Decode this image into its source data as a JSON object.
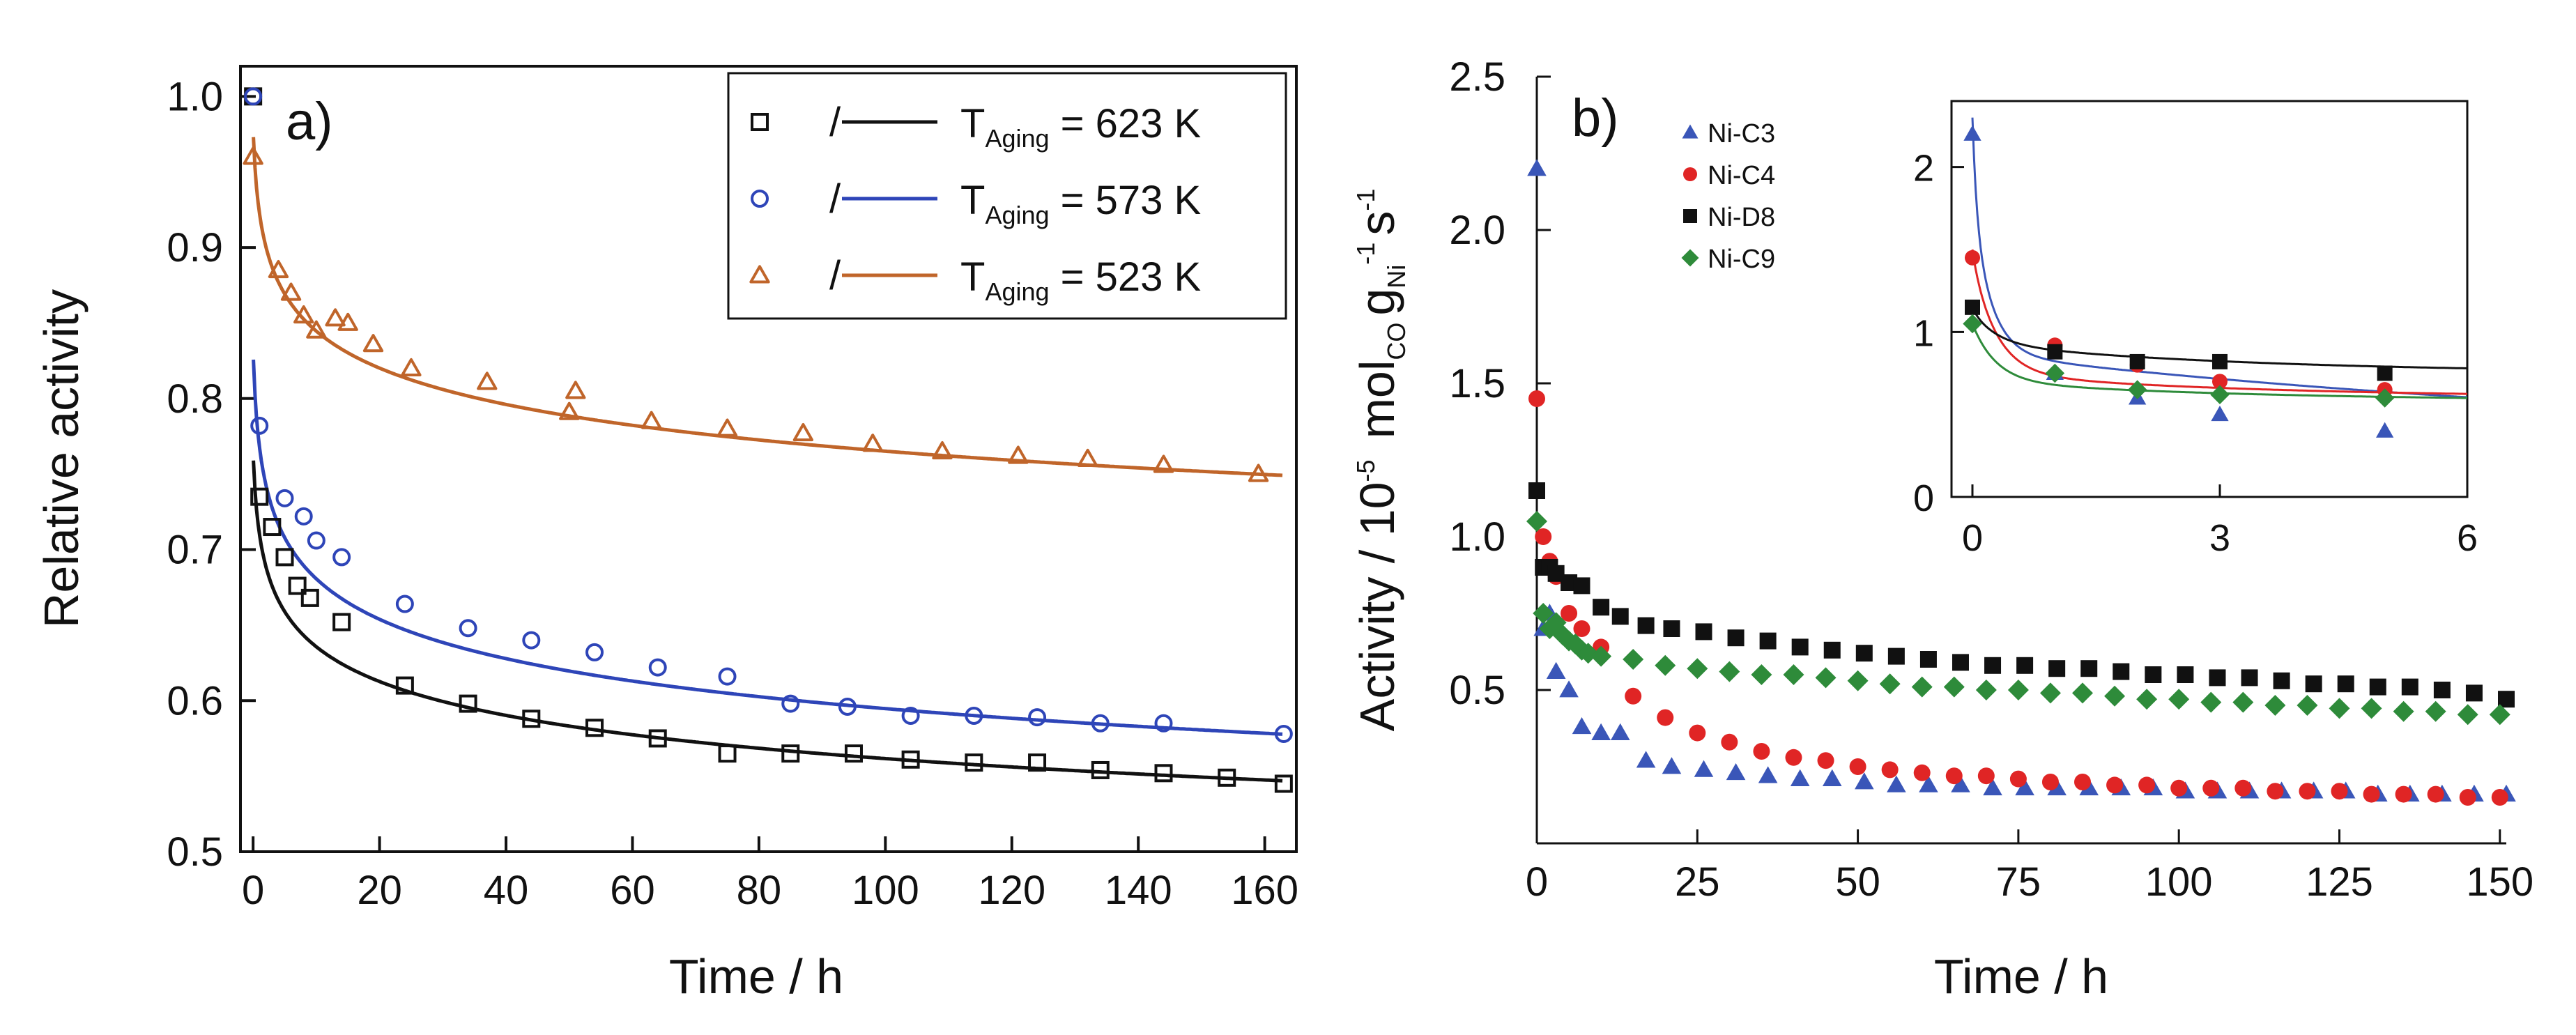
{
  "chart_data": [
    {
      "type": "scatter",
      "panel_tag": "a)",
      "xlabel": "Time / h",
      "ylabel": "Relative activity",
      "xlim": [
        -2,
        165
      ],
      "ylim": [
        0.5,
        1.02
      ],
      "xticks": [
        0,
        20,
        40,
        60,
        80,
        100,
        120,
        140,
        160
      ],
      "yticks": [
        0.5,
        0.6,
        0.7,
        0.8,
        0.9,
        1.0
      ],
      "xtick_labels": [
        "0",
        "20",
        "40",
        "60",
        "80",
        "100",
        "120",
        "140",
        "160"
      ],
      "ytick_labels": [
        "0.5",
        "0.6",
        "0.7",
        "0.8",
        "0.9",
        "1.0"
      ],
      "legend_position": "top-right",
      "series": [
        {
          "name": "623 K",
          "legend": {
            "T": "T",
            "sub": "Aging",
            "rest": " = 623 K",
            "slash": "/"
          },
          "color": "#111111",
          "marker": "square",
          "x": [
            0,
            1,
            3,
            5,
            7,
            9,
            14,
            24,
            34,
            44,
            54,
            64,
            75,
            85,
            95,
            104,
            114,
            124,
            134,
            144,
            154,
            163
          ],
          "y": [
            1.0,
            0.735,
            0.715,
            0.695,
            0.676,
            0.668,
            0.652,
            0.61,
            0.598,
            0.588,
            0.582,
            0.575,
            0.565,
            0.565,
            0.565,
            0.561,
            0.559,
            0.559,
            0.554,
            0.552,
            0.549,
            0.545
          ],
          "fit": {
            "a": 0.722,
            "b": -0.0545
          }
        },
        {
          "name": "573 K",
          "legend": {
            "T": "T",
            "sub": "Aging",
            "rest": " = 573 K",
            "slash": "/"
          },
          "color": "#2e45b8",
          "marker": "circle",
          "x": [
            0,
            1,
            5,
            8,
            10,
            14,
            24,
            34,
            44,
            54,
            64,
            75,
            85,
            94,
            104,
            114,
            124,
            134,
            144,
            163
          ],
          "y": [
            1.0,
            0.782,
            0.734,
            0.722,
            0.706,
            0.695,
            0.664,
            0.648,
            0.64,
            0.632,
            0.622,
            0.616,
            0.598,
            0.596,
            0.59,
            0.59,
            0.589,
            0.585,
            0.585,
            0.578
          ],
          "fit": {
            "a": 0.782,
            "b": -0.0594
          }
        },
        {
          "name": "523 K",
          "legend": {
            "T": "T",
            "sub": "Aging",
            "rest": " = 523 K",
            "slash": "/"
          },
          "color": "#c0652a",
          "marker": "triangle",
          "x": [
            0,
            4,
            6,
            8,
            10,
            13,
            15,
            19,
            25,
            37,
            50,
            51,
            63,
            75,
            87,
            98,
            109,
            121,
            132,
            144,
            159
          ],
          "y": [
            0.96,
            0.885,
            0.87,
            0.855,
            0.845,
            0.853,
            0.85,
            0.836,
            0.82,
            0.811,
            0.791,
            0.805,
            0.785,
            0.78,
            0.777,
            0.77,
            0.765,
            0.762,
            0.76,
            0.756,
            0.75
          ],
          "fit": {
            "a": 0.935,
            "b": -0.0435
          }
        }
      ]
    },
    {
      "type": "scatter",
      "panel_tag": "b)",
      "xlabel": "Time / h",
      "ylabel": {
        "prefix": "Activity / 10",
        "exp": "-5",
        "mol": "mol",
        "co": "CO",
        "g": "g",
        "ni": "Ni",
        "m1": "-1",
        "s": "s",
        "sm1": "-1"
      },
      "xlim": [
        0,
        151
      ],
      "ylim": [
        0,
        2.5
      ],
      "xticks": [
        0,
        25,
        50,
        75,
        100,
        125,
        150
      ],
      "yticks": [
        0.5,
        1.0,
        1.5,
        2.0,
        2.5
      ],
      "xtick_labels": [
        "0",
        "25",
        "50",
        "75",
        "100",
        "125",
        "150"
      ],
      "ytick_labels": [
        "0.5",
        "1.0",
        "1.5",
        "2.0",
        "2.5"
      ],
      "legend_position": "top-left",
      "series": [
        {
          "name": "Ni-C3",
          "color": "#3a56b8",
          "marker": "triangle",
          "x": [
            0,
            1,
            2,
            3,
            5,
            7,
            10,
            13,
            17,
            21,
            26,
            31,
            36,
            41,
            46,
            51,
            56,
            61,
            66,
            71,
            76,
            81,
            86,
            91,
            96,
            101,
            106,
            111,
            116,
            121,
            126,
            131,
            136,
            141,
            146,
            151
          ],
          "y": [
            2.2,
            0.7,
            0.75,
            0.56,
            0.5,
            0.38,
            0.36,
            0.36,
            0.27,
            0.25,
            0.24,
            0.23,
            0.22,
            0.21,
            0.21,
            0.2,
            0.19,
            0.19,
            0.19,
            0.18,
            0.18,
            0.18,
            0.18,
            0.18,
            0.18,
            0.17,
            0.17,
            0.17,
            0.17,
            0.17,
            0.17,
            0.16,
            0.16,
            0.16,
            0.16,
            0.16
          ]
        },
        {
          "name": "Ni-C4",
          "color": "#e02525",
          "marker": "circle",
          "x": [
            0,
            1,
            2,
            3,
            5,
            7,
            10,
            15,
            20,
            25,
            30,
            35,
            40,
            45,
            50,
            55,
            60,
            65,
            70,
            75,
            80,
            85,
            90,
            95,
            100,
            105,
            110,
            115,
            120,
            125,
            130,
            135,
            140,
            145,
            150
          ],
          "y": [
            1.45,
            1.0,
            0.92,
            0.87,
            0.75,
            0.7,
            0.64,
            0.48,
            0.41,
            0.36,
            0.33,
            0.3,
            0.28,
            0.27,
            0.25,
            0.24,
            0.23,
            0.22,
            0.22,
            0.21,
            0.2,
            0.2,
            0.19,
            0.19,
            0.18,
            0.18,
            0.18,
            0.17,
            0.17,
            0.17,
            0.16,
            0.16,
            0.16,
            0.15,
            0.15
          ]
        },
        {
          "name": "Ni-D8",
          "color": "#111111",
          "marker": "square",
          "x": [
            0,
            1,
            2,
            3,
            5,
            7,
            10,
            13,
            17,
            21,
            26,
            31,
            36,
            41,
            46,
            51,
            56,
            61,
            66,
            71,
            76,
            81,
            86,
            91,
            96,
            101,
            106,
            111,
            116,
            121,
            126,
            131,
            136,
            141,
            146,
            151
          ],
          "y": [
            1.15,
            0.9,
            0.9,
            0.88,
            0.85,
            0.84,
            0.77,
            0.74,
            0.71,
            0.7,
            0.69,
            0.67,
            0.66,
            0.64,
            0.63,
            0.62,
            0.61,
            0.6,
            0.59,
            0.58,
            0.58,
            0.57,
            0.57,
            0.56,
            0.55,
            0.55,
            0.54,
            0.54,
            0.53,
            0.52,
            0.52,
            0.51,
            0.51,
            0.5,
            0.49,
            0.47
          ]
        },
        {
          "name": "Ni-C9",
          "color": "#2e8b3a",
          "marker": "diamond",
          "x": [
            0,
            1,
            2,
            3,
            4,
            5,
            6,
            7,
            8,
            10,
            15,
            20,
            25,
            30,
            35,
            40,
            45,
            50,
            55,
            60,
            65,
            70,
            75,
            80,
            85,
            90,
            95,
            100,
            105,
            110,
            115,
            120,
            125,
            130,
            135,
            140,
            145,
            150
          ],
          "y": [
            1.05,
            0.75,
            0.7,
            0.72,
            0.68,
            0.66,
            0.65,
            0.63,
            0.62,
            0.61,
            0.6,
            0.58,
            0.57,
            0.56,
            0.55,
            0.55,
            0.54,
            0.53,
            0.52,
            0.51,
            0.51,
            0.5,
            0.5,
            0.49,
            0.49,
            0.48,
            0.47,
            0.47,
            0.46,
            0.46,
            0.45,
            0.45,
            0.44,
            0.44,
            0.43,
            0.43,
            0.42,
            0.42
          ]
        }
      ],
      "inset": {
        "xlim": [
          0,
          6
        ],
        "ylim": [
          0,
          2.4
        ],
        "xticks": [
          0,
          3,
          6
        ],
        "yticks": [
          0,
          1,
          2
        ],
        "xtick_labels": [
          "0",
          "3",
          "6"
        ],
        "ytick_labels": [
          "0",
          "1",
          "2"
        ],
        "series": [
          {
            "name": "Ni-C3",
            "color": "#3a56b8",
            "marker": "triangle",
            "x": [
              0,
              1,
              2,
              3,
              5
            ],
            "y": [
              2.2,
              0.75,
              0.6,
              0.5,
              0.4
            ],
            "fit": {
              "y0": 2.3,
              "A": 0.9,
              "k": 4.5,
              "B": 0.55,
              "k2": 0.11,
              "C": 0.32
            }
          },
          {
            "name": "Ni-C4",
            "color": "#e02525",
            "marker": "circle",
            "x": [
              0,
              1,
              2,
              3,
              5
            ],
            "y": [
              1.45,
              0.92,
              0.8,
              0.7,
              0.65
            ],
            "fit": {
              "y0": 1.5,
              "A": 0.7,
              "k": 3.5,
              "B": 0.15,
              "k2": 0.3,
              "C": 0.6
            }
          },
          {
            "name": "Ni-D8",
            "color": "#111111",
            "marker": "square",
            "x": [
              0,
              1,
              2,
              3,
              5
            ],
            "y": [
              1.15,
              0.88,
              0.82,
              0.82,
              0.75
            ],
            "fit": {
              "y0": 1.15,
              "A": 0.2,
              "k": 3.5,
              "B": 0.18,
              "k2": 0.3,
              "C": 0.75
            }
          },
          {
            "name": "Ni-C9",
            "color": "#2e8b3a",
            "marker": "diamond",
            "x": [
              0,
              1,
              2,
              3,
              5
            ],
            "y": [
              1.05,
              0.75,
              0.65,
              0.62,
              0.6
            ],
            "fit": {
              "y0": 1.05,
              "A": 0.35,
              "k": 3.5,
              "B": 0.12,
              "k2": 0.3,
              "C": 0.58
            }
          }
        ]
      }
    }
  ]
}
